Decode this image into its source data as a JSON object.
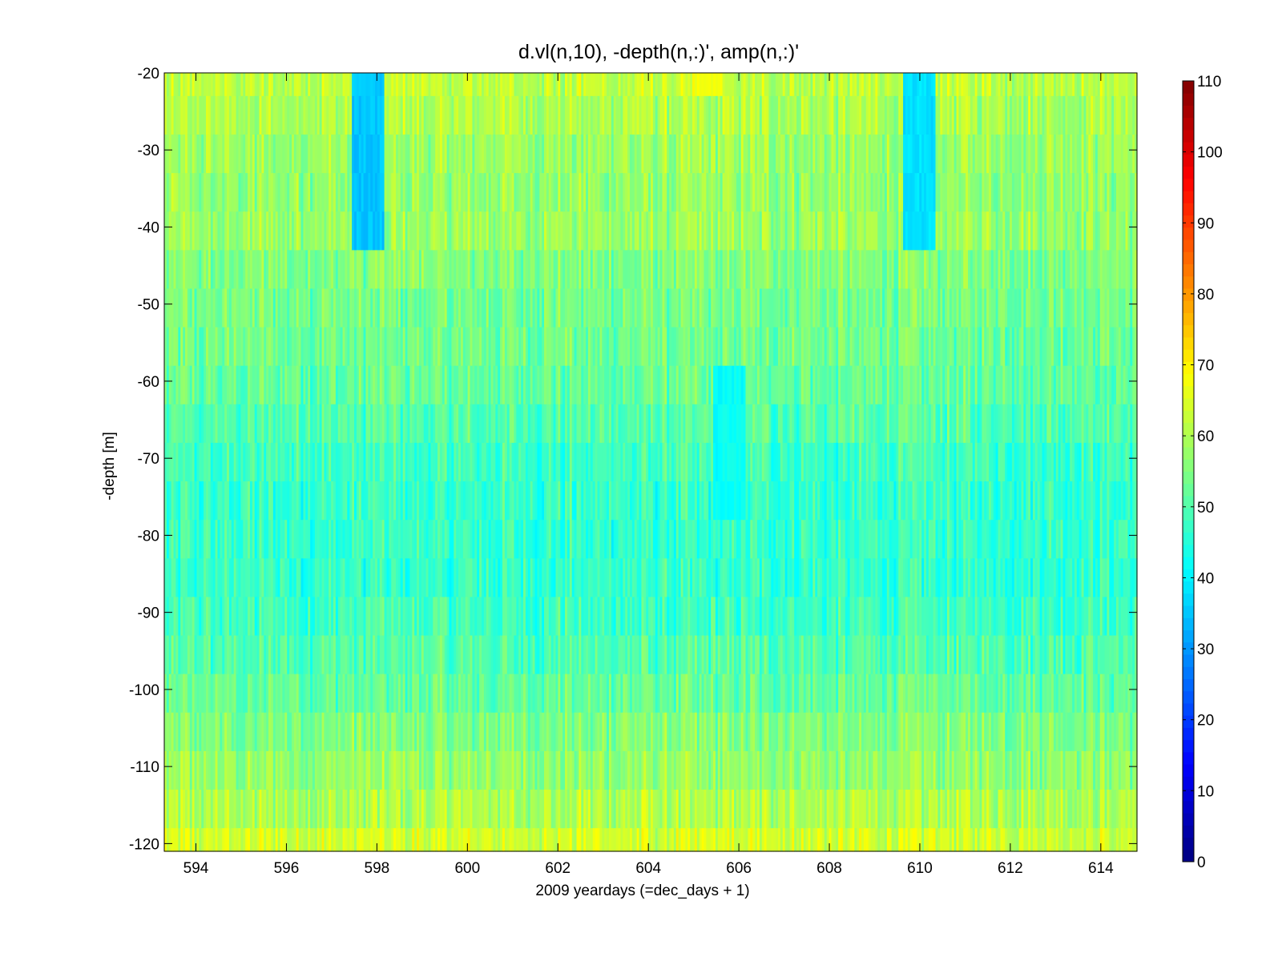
{
  "chart_data": {
    "type": "heatmap",
    "title": "d.vl(n,10), -depth(n,:)',       amp(n,:)'",
    "xlabel": "2009 yeardays (=dec_days + 1)",
    "ylabel": "-depth [m]",
    "xlim": [
      593.3,
      614.8
    ],
    "ylim": [
      -121,
      -20
    ],
    "x_ticks": [
      594,
      596,
      598,
      600,
      602,
      604,
      606,
      608,
      610,
      612,
      614
    ],
    "y_ticks": [
      -20,
      -30,
      -40,
      -50,
      -60,
      -70,
      -80,
      -90,
      -100,
      -110,
      -120
    ],
    "colorbar": {
      "colormap": "jet",
      "clim": [
        0,
        110
      ],
      "ticks": [
        0,
        10,
        20,
        30,
        40,
        50,
        60,
        70,
        80,
        90,
        100,
        110
      ]
    },
    "depth_bins": [
      -20.5,
      -25.5,
      -30.5,
      -35.5,
      -40.5,
      -45.5,
      -50.5,
      -55.5,
      -60.5,
      -65.5,
      -70.5,
      -75.5,
      -80.5,
      -85.5,
      -90.5,
      -95.5,
      -100.5,
      -105.5,
      -110.5,
      -115.5,
      -120.5
    ],
    "depth_mean_amplitude": [
      62,
      60,
      58,
      57,
      58,
      55,
      54,
      53,
      52,
      50,
      48,
      47,
      47,
      47,
      48,
      50,
      52,
      55,
      57,
      60,
      64
    ],
    "notes_on_features": [
      {
        "x": 597.8,
        "depth_range": [
          -20,
          -41
        ],
        "amplitude": 35
      },
      {
        "x": 610.0,
        "depth_range": [
          -20,
          -41
        ],
        "amplitude": 38
      },
      {
        "x": 605.3,
        "depth_range": [
          -20,
          -25
        ],
        "amplitude": 68
      },
      {
        "x": 605.8,
        "depth_range": [
          -60,
          -80
        ],
        "amplitude": 42
      }
    ]
  }
}
